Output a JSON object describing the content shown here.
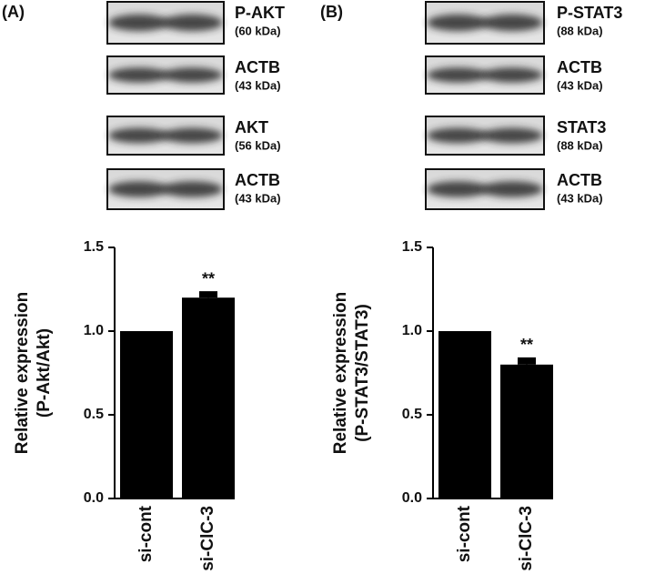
{
  "panels": [
    {
      "label": "(A)",
      "blots": [
        {
          "name": "P-AKT",
          "size": "(60 kDa)"
        },
        {
          "name": "ACTB",
          "size": "(43 kDa)"
        },
        {
          "name": "AKT",
          "size": "(56 kDa)"
        },
        {
          "name": "ACTB",
          "size": "(43 kDa)"
        }
      ]
    },
    {
      "label": "(B)",
      "blots": [
        {
          "name": "P-STAT3",
          "size": "(88 kDa)"
        },
        {
          "name": "ACTB",
          "size": "(43 kDa)"
        },
        {
          "name": "STAT3",
          "size": "(88 kDa)"
        },
        {
          "name": "ACTB",
          "size": "(43 kDa)"
        }
      ]
    }
  ],
  "chart_data": [
    {
      "type": "bar",
      "ylabel": [
        "Relative expression",
        "(P-Akt/Akt)"
      ],
      "categories": [
        "si-cont",
        "si-ClC-3"
      ],
      "values": [
        1.0,
        1.2
      ],
      "errors": [
        null,
        0.03
      ],
      "significance": [
        null,
        "**"
      ],
      "color": "#000000",
      "ylim": [
        0,
        1.5
      ],
      "yticks": [
        {
          "value": 0,
          "label": "0.0"
        },
        0.5,
        {
          "value": 1,
          "label": "1.0"
        },
        1.5
      ]
    },
    {
      "type": "bar",
      "ylabel": [
        "Relative expression",
        "(P-STAT3/STAT3)"
      ],
      "categories": [
        "si-cont",
        "si-ClC-3"
      ],
      "values": [
        1.0,
        0.8
      ],
      "errors": [
        null,
        0.035
      ],
      "significance": [
        null,
        "**"
      ],
      "color": "#000000",
      "ylim": [
        0,
        1.5
      ],
      "yticks": [
        {
          "value": 0,
          "label": "0.0"
        },
        0.5,
        {
          "value": 1,
          "label": "1.0"
        },
        1.5
      ]
    }
  ]
}
